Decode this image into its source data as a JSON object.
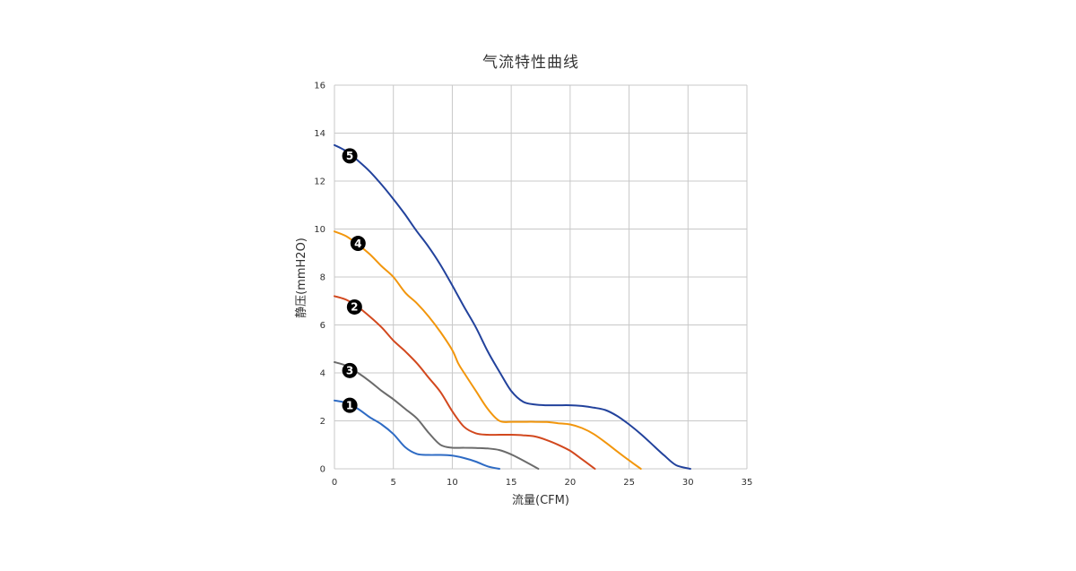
{
  "chart_data": {
    "type": "line",
    "title": "气流特性曲线",
    "xlabel": "流量(CFM)",
    "ylabel": "静压(mmH2O)",
    "xlim": [
      0,
      35
    ],
    "ylim": [
      0,
      16
    ],
    "xticks": [
      "0",
      "5",
      "10",
      "15",
      "20",
      "25",
      "30",
      "35"
    ],
    "yticks": [
      "0",
      "2",
      "4",
      "6",
      "8",
      "10",
      "12",
      "14",
      "16"
    ],
    "grid": true,
    "series": [
      {
        "marker": "1",
        "color": "#2e6bc4",
        "x": [
          0,
          1,
          2,
          3,
          4,
          5,
          6,
          7,
          8,
          9,
          10,
          11,
          12,
          13,
          14
        ],
        "y": [
          2.85,
          2.75,
          2.5,
          2.15,
          1.85,
          1.45,
          0.9,
          0.62,
          0.58,
          0.58,
          0.55,
          0.45,
          0.3,
          0.1,
          0
        ]
      },
      {
        "marker": "3",
        "color": "#6b6b6b",
        "x": [
          0,
          1,
          2,
          3,
          4,
          5,
          6,
          7,
          8,
          9,
          10,
          11,
          12,
          13,
          14,
          15,
          16,
          17.3
        ],
        "y": [
          4.45,
          4.3,
          4.0,
          3.65,
          3.25,
          2.9,
          2.5,
          2.1,
          1.5,
          1.0,
          0.88,
          0.88,
          0.87,
          0.85,
          0.78,
          0.6,
          0.35,
          0
        ]
      },
      {
        "marker": "2",
        "color": "#d2481e",
        "x": [
          0,
          1,
          2,
          3,
          4,
          5,
          6,
          7,
          8,
          9,
          10,
          11,
          12,
          13,
          14,
          15,
          16,
          17,
          18,
          19,
          20,
          21,
          22.1
        ],
        "y": [
          7.2,
          7.05,
          6.75,
          6.35,
          5.9,
          5.35,
          4.9,
          4.4,
          3.8,
          3.2,
          2.4,
          1.75,
          1.48,
          1.42,
          1.42,
          1.42,
          1.4,
          1.35,
          1.2,
          1.0,
          0.75,
          0.4,
          0
        ]
      },
      {
        "marker": "4",
        "color": "#f2960c",
        "x": [
          0,
          1,
          2,
          3,
          4,
          5,
          6,
          7,
          8,
          9,
          10,
          10.5,
          11,
          12,
          13,
          14,
          15,
          16,
          17,
          18,
          19,
          20,
          21,
          22,
          23,
          24,
          25,
          26
        ],
        "y": [
          9.9,
          9.7,
          9.35,
          8.95,
          8.45,
          8.0,
          7.35,
          6.9,
          6.35,
          5.7,
          4.95,
          4.4,
          4.0,
          3.25,
          2.5,
          2.0,
          1.96,
          1.96,
          1.96,
          1.95,
          1.9,
          1.85,
          1.7,
          1.45,
          1.1,
          0.72,
          0.35,
          0
        ]
      },
      {
        "marker": "5",
        "color": "#22429c",
        "x": [
          0,
          1,
          2,
          3,
          4,
          5,
          6,
          7,
          8,
          9,
          10,
          11,
          12,
          13,
          14,
          15,
          16,
          17,
          18,
          19,
          20,
          21,
          22,
          23,
          24,
          25,
          26,
          27,
          28,
          29,
          30.2
        ],
        "y": [
          13.5,
          13.25,
          12.85,
          12.4,
          11.85,
          11.25,
          10.6,
          9.9,
          9.25,
          8.5,
          7.65,
          6.75,
          5.9,
          4.9,
          4.05,
          3.25,
          2.8,
          2.68,
          2.65,
          2.65,
          2.65,
          2.62,
          2.55,
          2.45,
          2.2,
          1.85,
          1.45,
          1.0,
          0.55,
          0.15,
          0
        ]
      }
    ],
    "markers": [
      {
        "label": "1",
        "x": 1.3,
        "y": 2.65
      },
      {
        "label": "3",
        "x": 1.3,
        "y": 4.1
      },
      {
        "label": "2",
        "x": 1.7,
        "y": 6.75
      },
      {
        "label": "4",
        "x": 2.0,
        "y": 9.4
      },
      {
        "label": "5",
        "x": 1.3,
        "y": 13.05
      }
    ]
  }
}
